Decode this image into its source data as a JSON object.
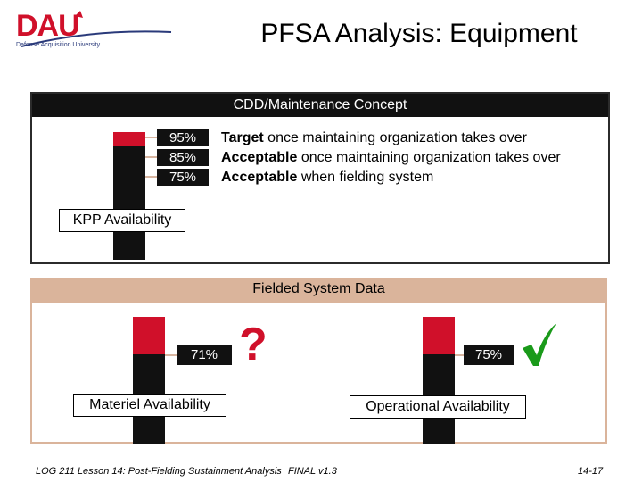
{
  "header": {
    "logo_text": "DAU",
    "logo_subtext": "Defense Acquisition University",
    "title": "PFSA Analysis: Equipment"
  },
  "cdd_panel": {
    "heading": "CDD/Maintenance Concept",
    "thresholds": [
      {
        "pct": "95%",
        "bold": "Target",
        "rest": " once maintaining organization takes over"
      },
      {
        "pct": "85%",
        "bold": "Acceptable",
        "rest": " once maintaining organization takes over"
      },
      {
        "pct": "75%",
        "bold": "Acceptable",
        "rest": " when fielding system"
      }
    ],
    "kpp_label": "KPP Availability"
  },
  "fielded_panel": {
    "heading": "Fielded System Data",
    "materiel": {
      "pct": "71%",
      "label": "Materiel Availability",
      "status": "?"
    },
    "operational": {
      "pct": "75%",
      "label": "Operational Availability",
      "status": "check-icon"
    }
  },
  "footer": {
    "left": "LOG 211 Lesson 14: Post-Fielding Sustainment Analysis",
    "middle": "FINAL v1.3",
    "right": "14-17"
  },
  "colors": {
    "accent_red": "#d0102a",
    "tan": "#dab49b",
    "check_green": "#1a9a1a"
  }
}
